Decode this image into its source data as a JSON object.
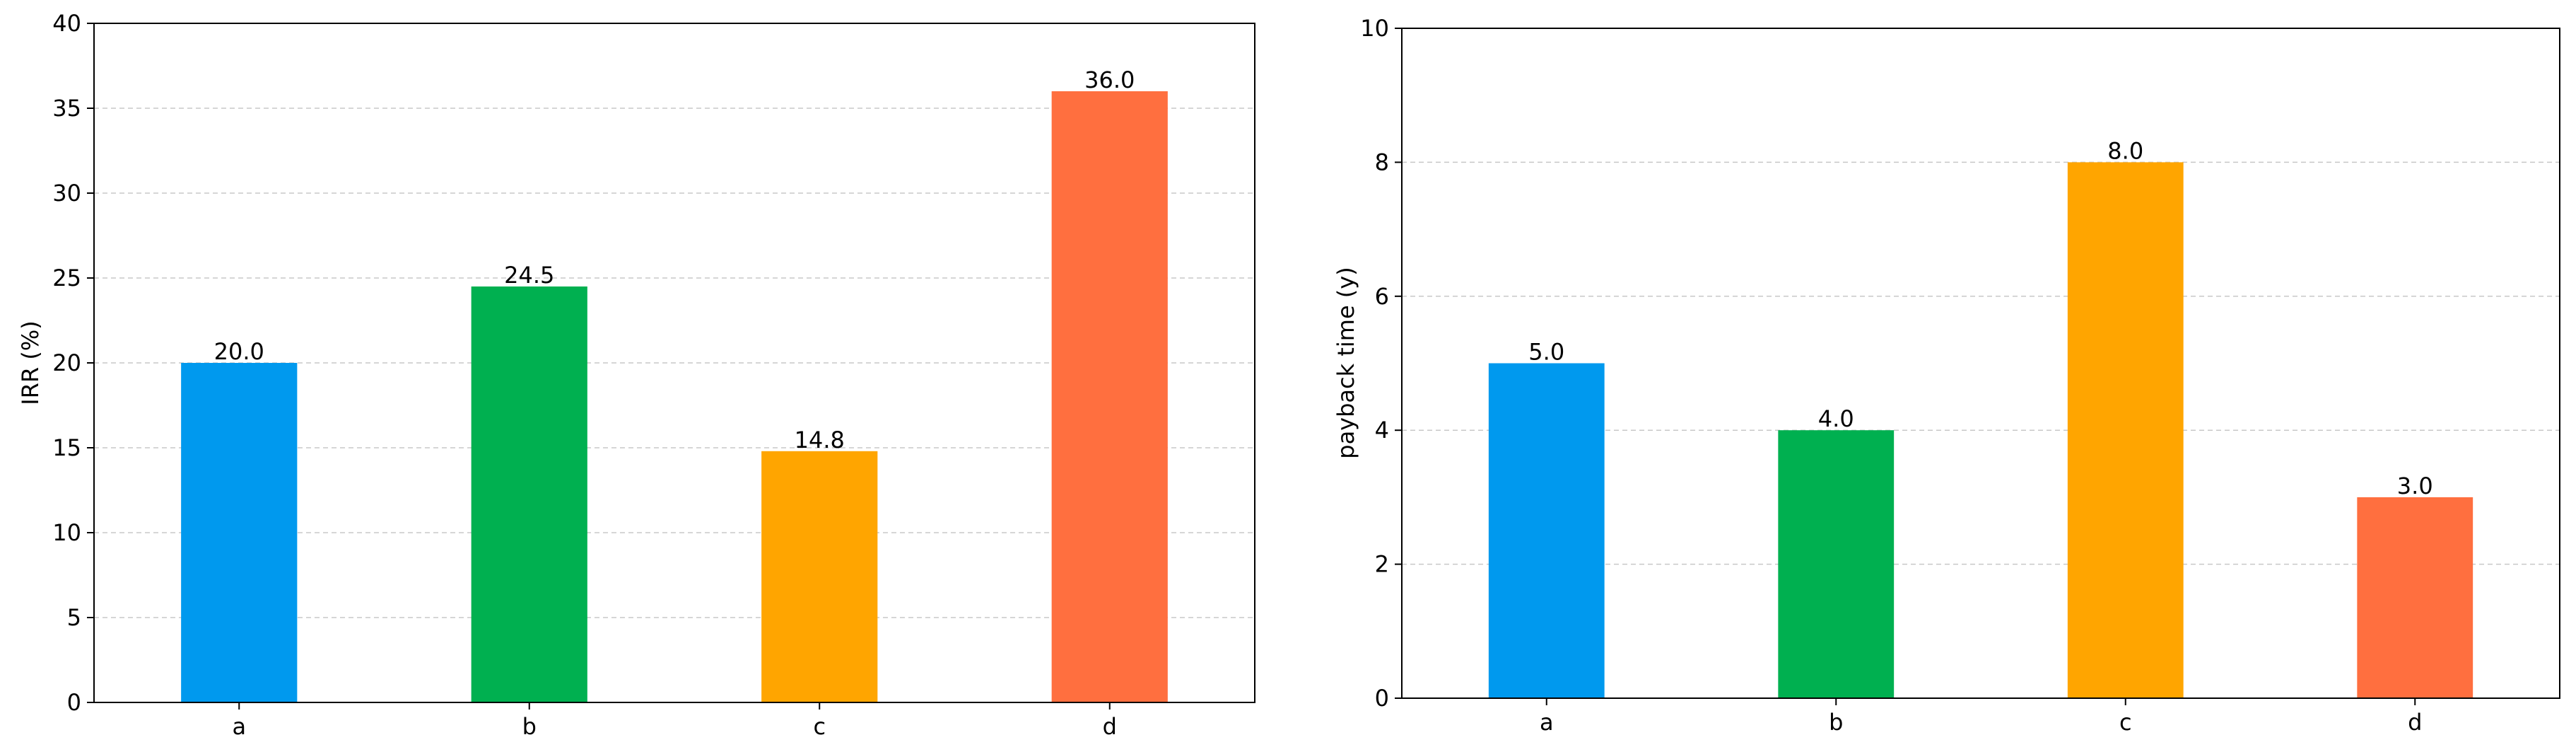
{
  "chart_data": [
    {
      "type": "bar",
      "categories": [
        "a",
        "b",
        "c",
        "d"
      ],
      "values": [
        20.0,
        24.5,
        14.8,
        36.0
      ],
      "value_labels": [
        "20.0",
        "24.5",
        "14.8",
        "36.0"
      ],
      "colors": [
        "#0099ee",
        "#00b050",
        "#ffa500",
        "#ff6f3f"
      ],
      "title": "",
      "xlabel": "",
      "ylabel": "IRR (%)",
      "ylim": [
        0,
        40
      ],
      "yticks": [
        0,
        5,
        10,
        15,
        20,
        25,
        30,
        35,
        40
      ],
      "grid": "y-dashed"
    },
    {
      "type": "bar",
      "categories": [
        "a",
        "b",
        "c",
        "d"
      ],
      "values": [
        5.0,
        4.0,
        8.0,
        3.0
      ],
      "value_labels": [
        "5.0",
        "4.0",
        "8.0",
        "3.0"
      ],
      "colors": [
        "#0099ee",
        "#00b050",
        "#ffa500",
        "#ff6f3f"
      ],
      "title": "",
      "xlabel": "",
      "ylabel": "payback time (y)",
      "ylim": [
        0,
        10
      ],
      "yticks": [
        0,
        2,
        4,
        6,
        8,
        10
      ],
      "grid": "y-dashed"
    }
  ]
}
